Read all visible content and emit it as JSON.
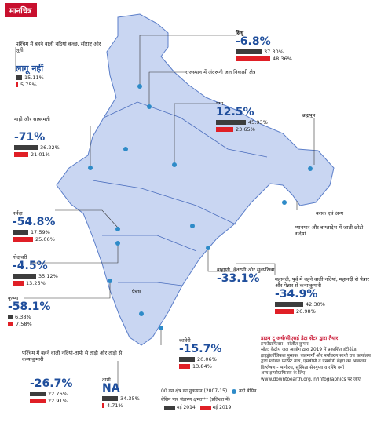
{
  "badge": "मानचित्र",
  "basins": [
    {
      "id": "indus",
      "name": "सिंधु",
      "pct": "-6.8%",
      "v2014": "37.30%",
      "v2019": "48.36%",
      "f14": 0.373,
      "f19": 0.4836
    },
    {
      "id": "west-kutch",
      "name": "पश्चिम में बहने वाली नदियां कच्छ, सौराष्ट्र और लूनी",
      "pct": "लागू नहीं",
      "v2014": "15.11%",
      "v2019": "5.75%",
      "f14": 0.1511,
      "f19": 0.0575
    },
    {
      "id": "rajasthan",
      "name": "राजस्थान में अंदरूनी जल निकासी क्षेत्र"
    },
    {
      "id": "ganga",
      "name": "गंगा",
      "pct": "12.5%",
      "v2014": "45.93%",
      "v2019": "23.65%",
      "f14": 0.4593,
      "f19": 0.2365
    },
    {
      "id": "brahmaputra",
      "name": "ब्रह्मपुत्र"
    },
    {
      "id": "mahi",
      "name": "माही और साबरमती",
      "pct": "-71%",
      "v2014": "36.22%",
      "v2019": "21.01%",
      "f14": 0.3622,
      "f19": 0.2101
    },
    {
      "id": "barak",
      "name": "बराक एवं अन्य"
    },
    {
      "id": "myanmar",
      "name": "म्यानमार और बांग्लादेश में जाती छोटी नदियां"
    },
    {
      "id": "narmada",
      "name": "नर्मदा",
      "pct": "-54.8%",
      "v2014": "17.59%",
      "v2019": "25.06%",
      "f14": 0.1759,
      "f19": 0.2506
    },
    {
      "id": "godavari",
      "name": "गोदावरी",
      "pct": "-4.5%",
      "v2014": "35.12%",
      "v2019": "13.25%",
      "f14": 0.3512,
      "f19": 0.1325
    },
    {
      "id": "brahmani",
      "name": "ब्राह्मणी, वैतरणी और सुवर्णरेखा",
      "pct": "-33.1%"
    },
    {
      "id": "mahanadi",
      "name": "महानदी, पूर्व में बहने वाली नदियां, महानदी से पेन्नार और पेन्नार से कन्याकुमारी",
      "pct": "-34.9%",
      "v2014": "42.30%",
      "v2019": "26.98%",
      "f14": 0.423,
      "f19": 0.2698
    },
    {
      "id": "krishna",
      "name": "कृष्णा",
      "pct": "-58.1%",
      "v2014": "6.38%",
      "v2019": "7.58%",
      "f14": 0.0638,
      "f19": 0.0758
    },
    {
      "id": "west-tadri",
      "name": "पश्चिम में बहने वाली नदियां-तापी से ताड़ी और ताड़ी से कन्याकुमारी",
      "pct": "-26.7%",
      "v2014": "22.76%",
      "v2019": "22.91%",
      "f14": 0.2276,
      "f19": 0.2291
    },
    {
      "id": "tapi",
      "name": "तापी",
      "pct": "NA",
      "v2014": "34.35%",
      "v2019": "4.71%",
      "f14": 0.3435,
      "f19": 0.0471
    },
    {
      "id": "cauvery",
      "name": "कावेरी",
      "pct": "-15.7%",
      "v2014": "20.06%",
      "v2019": "13.84%",
      "f14": 0.2006,
      "f19": 0.1384
    },
    {
      "id": "pennar",
      "name": "पेन्नार"
    }
  ],
  "legend": {
    "line1": "00  वन क्षेत्र का नुकसान (2007-15)",
    "basin_label": "नदी बेसिन",
    "line2": "बेसिन पार भंडारण क्षमता** (प्रतिशत में)",
    "y2014": "मई 2014",
    "y2019": "मई 2019"
  },
  "credits": {
    "head": "डाउन टू अर्थ/सीएसई डेटा सेंटर द्वारा तैयार",
    "graphic": "इन्फोग्राफिक्स - संजीत कुमार",
    "source": "स्रोत: केंद्रीय जल आयोग द्वारा 2019 में प्रकाशित इंटीग्रेटेड हाइड्रोलॉजिकल पुस्तक, जलमार्गों और पर्यावरण साथी राय कार्यालय द्वारा ग्लोबल फॉरेस्ट वॉच, एसबीसी व एसबीडी बेहरा का आकलन",
    "analysis": "विश्लेषण - भागीरथ, सुस्मिता सेनगुप्ता व रश्मि वर्मा",
    "more": "अन्य इन्फोग्राफिक्स के लिए",
    "url": "www.downtoearth.org.in/infographics पर जाएं"
  },
  "colors": {
    "map": "#c9d6f2",
    "river": "#5b7ec9",
    "bar2014": "#3d3d3d",
    "bar2019": "#e01f26",
    "accent": "#1f4e9c"
  }
}
